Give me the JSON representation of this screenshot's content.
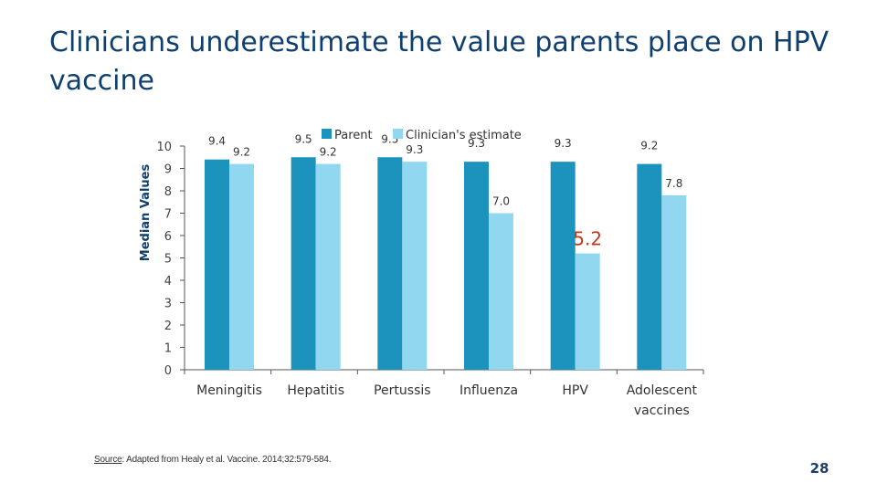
{
  "slide": {
    "title": "Clinicians underestimate the value parents place on HPV vaccine",
    "source_label": "Source",
    "source_text": ": Adapted from Healy et al. Vaccine. 2014;32:579-584.",
    "page_number": "28"
  },
  "colors": {
    "title": "#0f3f6f",
    "parent": "#1b93bd",
    "clinician": "#91d7f0",
    "highlight_label": "#c0391b",
    "axis": "#555555"
  },
  "chart_data": {
    "type": "bar",
    "title": "",
    "xlabel": "",
    "ylabel": "Median Values",
    "ylim": [
      0,
      10
    ],
    "yticks": [
      0,
      1,
      2,
      3,
      4,
      5,
      6,
      7,
      8,
      9,
      10
    ],
    "grid": false,
    "legend_position": "top",
    "categories": [
      [
        "Meningitis"
      ],
      [
        "Hepatitis"
      ],
      [
        "Pertussis"
      ],
      [
        "Influenza"
      ],
      [
        "HPV"
      ],
      [
        "Adolescent",
        "vaccines"
      ]
    ],
    "series": [
      {
        "name": "Parent",
        "values": [
          9.4,
          9.5,
          9.5,
          9.3,
          9.3,
          9.2
        ],
        "labels": [
          "9.4",
          "9.5",
          "9.5",
          "9.3",
          "9.3",
          "9.2"
        ]
      },
      {
        "name": "Clinician's estimate",
        "values": [
          9.2,
          9.2,
          9.3,
          7.0,
          5.2,
          7.8
        ],
        "labels": [
          "9.2",
          "9.2",
          "9.3",
          "7.0",
          "5.2",
          "7.8"
        ]
      }
    ],
    "highlight": {
      "series": 1,
      "category": 4
    }
  }
}
